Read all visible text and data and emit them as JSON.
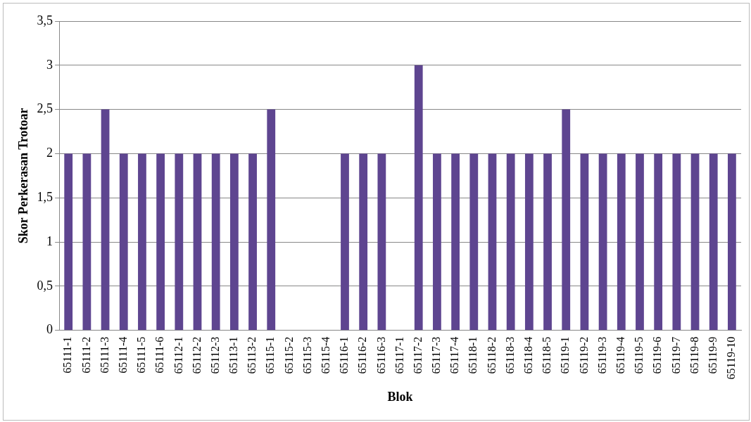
{
  "chart_data": {
    "type": "bar",
    "xlabel": "Blok",
    "ylabel": "Skor Perkerasan Trotoar",
    "categories": [
      "65111-1",
      "65111-2",
      "65111-3",
      "65111-4",
      "65111-5",
      "65111-6",
      "65112-1",
      "65112-2",
      "65112-3",
      "65113-1",
      "65113-2",
      "65115-1",
      "65115-2",
      "65115-3",
      "65115-4",
      "65116-1",
      "65116-2",
      "65116-3",
      "65117-1",
      "65117-2",
      "65117-3",
      "65117-4",
      "65118-1",
      "65118-2",
      "65118-3",
      "65118-4",
      "65118-5",
      "65119-1",
      "65119-2",
      "65119-3",
      "65119-4",
      "65119-5",
      "65119-6",
      "65119-7",
      "65119-8",
      "65119-9",
      "65119-10"
    ],
    "values": [
      2,
      2,
      2.5,
      2,
      2,
      2,
      2,
      2,
      2,
      2,
      2,
      2.5,
      0,
      0,
      0,
      2,
      2,
      2,
      0,
      3,
      2,
      2,
      2,
      2,
      2,
      2,
      2,
      2.5,
      2,
      2,
      2,
      2,
      2,
      2,
      2,
      2,
      2
    ],
    "color": "#5e4590",
    "ylim": [
      0,
      3.5
    ],
    "yticks": [
      0,
      {
        "value": 0.5,
        "label": "0,5"
      },
      1,
      {
        "value": 1.5,
        "label": "1,5"
      },
      2,
      {
        "value": 2.5,
        "label": "2,5"
      },
      3,
      {
        "value": 3.5,
        "label": "3,5"
      }
    ],
    "grid": "y"
  }
}
